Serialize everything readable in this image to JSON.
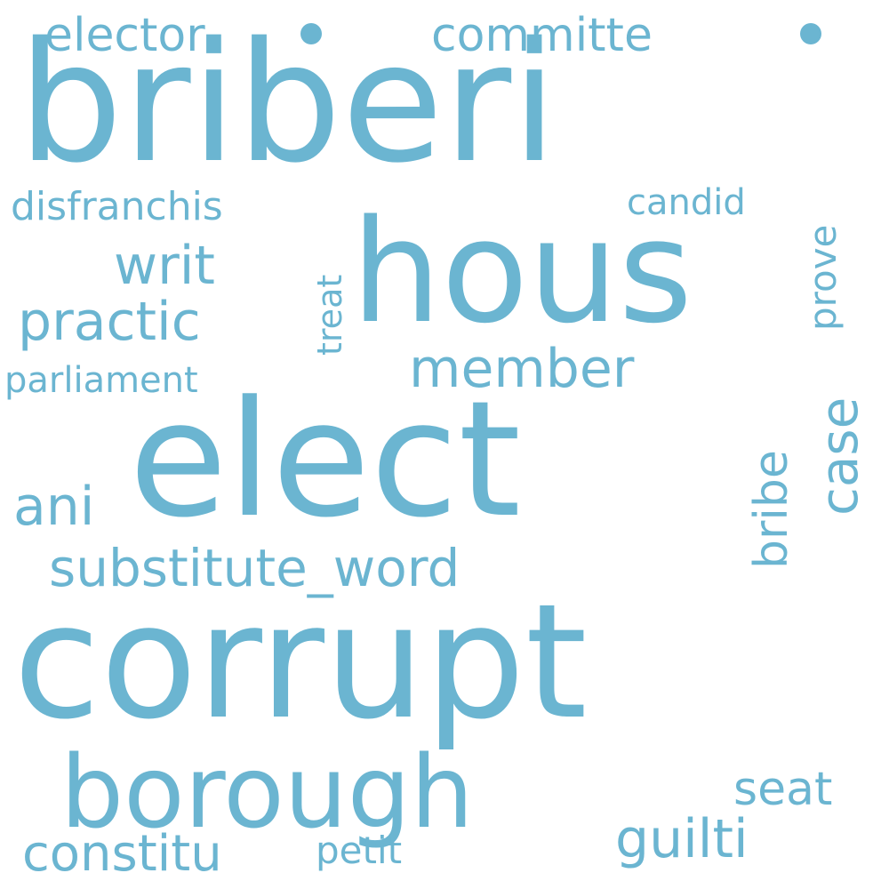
{
  "word_color": "#6bb5d1",
  "background": "#ffffff",
  "words": [
    "briberi",
    "hous",
    "elect",
    "corrupt",
    "borough",
    "elector",
    "committe",
    "disfranchis",
    "candid",
    "prove",
    "writ",
    "practic",
    "treat",
    "member",
    "parliament",
    "case",
    "bribe",
    "ani",
    "substitute_word",
    "seat",
    "guilti",
    "constitu",
    "petit"
  ]
}
